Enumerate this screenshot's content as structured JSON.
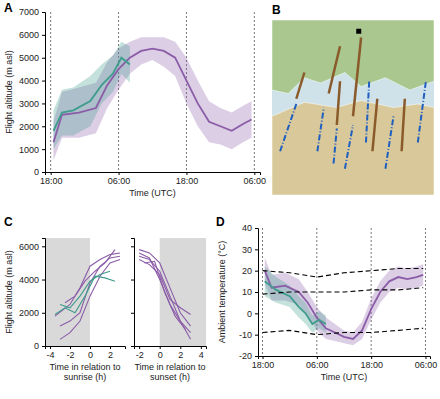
{
  "chart_data": [
    {
      "type": "line",
      "title": "A",
      "xlabel": "Time (UTC)",
      "ylabel": "Flight altitude (m asl)",
      "xlim": [
        -1,
        37
      ],
      "xticks": [
        {
          "value": 0,
          "label": "18:00"
        },
        {
          "value": 12,
          "label": "06:00"
        },
        {
          "value": 24,
          "label": "18:00"
        },
        {
          "value": 36,
          "label": "06:00"
        }
      ],
      "ylim": [
        0,
        7000
      ],
      "yticks": [
        0,
        1000,
        2000,
        3000,
        4000,
        5000,
        6000,
        7000
      ],
      "grid": "x",
      "series": [
        {
          "color": "#8b5ca8",
          "x": [
            0.5,
            2,
            5,
            8,
            10,
            12,
            14,
            16,
            18,
            20,
            22,
            24,
            26,
            28,
            30,
            32,
            34,
            35.5
          ],
          "values": [
            1300,
            2500,
            2600,
            2800,
            3800,
            4500,
            5000,
            5300,
            5400,
            5300,
            5000,
            4000,
            3000,
            2200,
            2000,
            1800,
            2100,
            2300
          ],
          "lower": [
            500,
            1500,
            1500,
            1700,
            2800,
            3600,
            4300,
            4700,
            4900,
            4600,
            4200,
            3000,
            2000,
            1300,
            1200,
            1000,
            1300,
            1500
          ],
          "upper": [
            2200,
            3500,
            3700,
            3900,
            4800,
            5400,
            5700,
            5900,
            5900,
            5900,
            5700,
            5000,
            4000,
            3100,
            2800,
            2600,
            2900,
            3100
          ]
        },
        {
          "color": "#3f9c8c",
          "x": [
            0.5,
            2,
            4,
            7,
            9,
            11,
            12.5,
            14
          ],
          "values": [
            1800,
            2600,
            2700,
            3100,
            3800,
            4300,
            5000,
            4700
          ],
          "lower": [
            1000,
            1600,
            1600,
            2000,
            3000,
            3500,
            4300,
            3900
          ],
          "upper": [
            2700,
            3600,
            3700,
            4200,
            4700,
            5100,
            5700,
            5500
          ]
        }
      ]
    },
    {
      "type": "map",
      "title": "B"
    },
    {
      "type": "line",
      "title": "C",
      "xlabel": [
        "Time in relation to",
        "sunrise (h)"
      ],
      "ylabel": "Flight altitude (m asl)",
      "xlim": [
        -4.5,
        3.5
      ],
      "xticks": [
        -4,
        -2,
        0,
        2
      ],
      "ylim": [
        0,
        6500
      ],
      "yticks": [
        0,
        2000,
        4000,
        6000
      ],
      "night": [
        -4.5,
        0
      ],
      "series": [
        {
          "color": "#8b5ca8",
          "x": [
            -3.5,
            -2,
            -1,
            0,
            1,
            2,
            3
          ],
          "values": [
            1800,
            2500,
            3500,
            4800,
            5200,
            5500,
            5600
          ]
        },
        {
          "color": "#8b5ca8",
          "x": [
            -3,
            -2,
            -1,
            0,
            1,
            2,
            3
          ],
          "values": [
            1200,
            1500,
            2000,
            3800,
            4800,
            5300,
            5400
          ]
        },
        {
          "color": "#8b5ca8",
          "x": [
            -2.5,
            -1.5,
            -0.5,
            0.5,
            1.5,
            2.5
          ],
          "values": [
            2600,
            3000,
            3900,
            4500,
            5000,
            5800
          ]
        },
        {
          "color": "#8b5ca8",
          "x": [
            -3,
            -2,
            -1,
            0,
            1,
            2,
            3
          ],
          "values": [
            400,
            800,
            1500,
            3000,
            4200,
            5000,
            5200
          ]
        },
        {
          "color": "#3f9c8c",
          "x": [
            -3.5,
            -2.5,
            -1.5,
            -0.5,
            0.5,
            1.5,
            2.5
          ],
          "values": [
            1900,
            2300,
            2000,
            3000,
            4200,
            4100,
            3900
          ]
        },
        {
          "color": "#3f9c8c",
          "x": [
            -3,
            -2,
            -1,
            0,
            1,
            2
          ],
          "values": [
            2500,
            2300,
            3000,
            3900,
            4300,
            4500
          ]
        }
      ]
    },
    {
      "type": "line",
      "xlabel": [
        "Time in relation to",
        "sunset (h)"
      ],
      "xlim": [
        -2.5,
        4.5
      ],
      "xticks": [
        -2,
        0,
        2,
        4
      ],
      "ylim": [
        0,
        6500
      ],
      "yticks": [
        0,
        2000,
        4000,
        6000
      ],
      "tick_labels": "x",
      "night": [
        0,
        4.5
      ],
      "series": [
        {
          "color": "#8b5ca8",
          "x": [
            -2,
            -1,
            0,
            1,
            2,
            3
          ],
          "values": [
            5800,
            5600,
            5000,
            3500,
            2000,
            1200
          ]
        },
        {
          "color": "#8b5ca8",
          "x": [
            -2,
            -1,
            0,
            1,
            2,
            3
          ],
          "values": [
            5400,
            5200,
            4500,
            3000,
            1500,
            800
          ]
        },
        {
          "color": "#8b5ca8",
          "x": [
            -2,
            -1,
            0,
            1,
            2,
            3
          ],
          "values": [
            5600,
            5300,
            4000,
            2500,
            1500,
            400
          ]
        },
        {
          "color": "#8b5ca8",
          "x": [
            -1.5,
            -0.5,
            0.5,
            1.5,
            2.5
          ],
          "values": [
            5000,
            5100,
            3200,
            1800,
            1000
          ]
        },
        {
          "color": "#8b5ca8",
          "x": [
            -2,
            -1,
            0,
            1,
            2,
            3
          ],
          "values": [
            5200,
            4900,
            4300,
            2800,
            2300,
            1900
          ]
        }
      ]
    },
    {
      "type": "line",
      "title": "D",
      "xlabel": "Time (UTC)",
      "ylabel": "Ambient temperature (°C)",
      "xlim": [
        -1,
        37
      ],
      "xticks": [
        {
          "value": 0,
          "label": "18:00"
        },
        {
          "value": 12,
          "label": "06:00"
        },
        {
          "value": 24,
          "label": "18:00"
        },
        {
          "value": 36,
          "label": "06:00"
        }
      ],
      "ylim": [
        -20,
        40
      ],
      "yticks": [
        -20,
        -10,
        0,
        10,
        20,
        30,
        40
      ],
      "grid": "x",
      "series": [
        {
          "color": "#8b5ca8",
          "x": [
            0.5,
            2,
            5,
            8,
            10,
            12,
            14,
            16,
            18,
            20,
            22,
            24,
            26,
            28,
            30,
            32,
            34,
            35.5
          ],
          "values": [
            20,
            12,
            13,
            10,
            5,
            -2,
            -7,
            -9,
            -11,
            -12,
            -8,
            2,
            10,
            15,
            17,
            16,
            17,
            18
          ],
          "lower": [
            14,
            6,
            6,
            4,
            -1,
            -8,
            -12,
            -13,
            -14,
            -15,
            -12,
            -3,
            5,
            10,
            12,
            11,
            12,
            13
          ],
          "upper": [
            26,
            18,
            19,
            16,
            10,
            3,
            -2,
            -5,
            -8,
            -9,
            -4,
            7,
            15,
            20,
            22,
            21,
            22,
            23
          ]
        },
        {
          "color": "#3f9c8c",
          "x": [
            0.5,
            3,
            6,
            8,
            9.5,
            11,
            12.5,
            14
          ],
          "values": [
            15,
            11,
            8,
            3,
            0,
            -5,
            -3,
            -5
          ],
          "lower": [
            8,
            5,
            3,
            -2,
            -5,
            -9,
            -7,
            -9
          ],
          "upper": [
            22,
            17,
            13,
            8,
            5,
            -1,
            1,
            -1
          ]
        },
        {
          "color": "#000000",
          "line_style": "dashed",
          "x": [
            0,
            6,
            12,
            18,
            24,
            30,
            35.5
          ],
          "values": [
            20,
            19,
            17,
            19,
            20,
            21,
            21
          ]
        },
        {
          "color": "#000000",
          "line_style": "dashed",
          "x": [
            0,
            6,
            12,
            18,
            24,
            30,
            35.5
          ],
          "values": [
            9,
            10,
            10,
            10,
            11,
            11,
            12
          ]
        },
        {
          "color": "#000000",
          "line_style": "dashed",
          "x": [
            0,
            6,
            12,
            18,
            24,
            30,
            35.5
          ],
          "values": [
            -9,
            -8,
            -10,
            -9,
            -9,
            -8,
            -7
          ]
        }
      ]
    }
  ]
}
